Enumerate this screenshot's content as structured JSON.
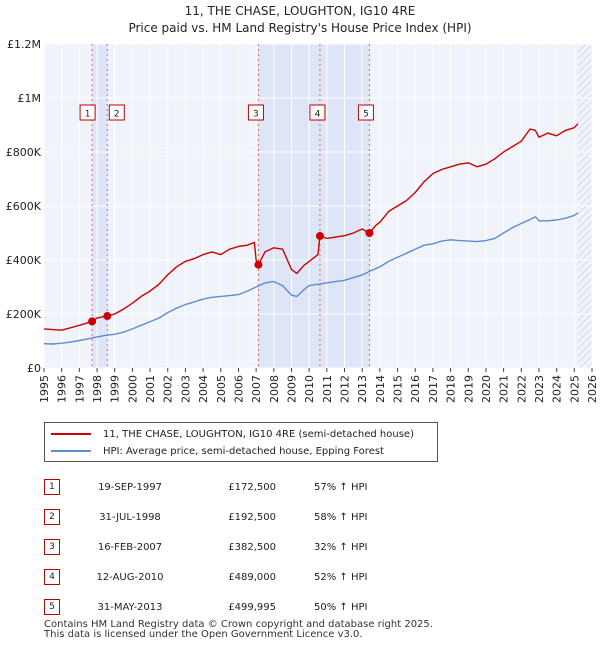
{
  "chart_data": {
    "type": "line",
    "title": "11, THE CHASE, LOUGHTON, IG10 4RE",
    "subtitle": "Price paid vs. HM Land Registry's House Price Index (HPI)",
    "xlim": [
      1995,
      2026
    ],
    "ylim": [
      0,
      1200000
    ],
    "x_ticks": [
      1995,
      1996,
      1997,
      1998,
      1999,
      2000,
      2001,
      2002,
      2003,
      2004,
      2005,
      2006,
      2007,
      2008,
      2009,
      2010,
      2011,
      2012,
      2013,
      2014,
      2015,
      2016,
      2017,
      2018,
      2019,
      2020,
      2021,
      2022,
      2023,
      2024,
      2025,
      2026
    ],
    "x_tick_labels": [
      "1995",
      "1996",
      "1997",
      "1998",
      "1999",
      "2000",
      "2001",
      "2002",
      "2003",
      "2004",
      "2005",
      "2006",
      "2007",
      "2008",
      "2009",
      "2010",
      "2011",
      "2012",
      "2013",
      "2014",
      "2015",
      "2016",
      "2017",
      "2018",
      "2019",
      "2020",
      "2021",
      "2022",
      "2023",
      "2024",
      "2025",
      "2026"
    ],
    "y_ticks": [
      0,
      200000,
      400000,
      600000,
      800000,
      1000000,
      1200000
    ],
    "y_tick_labels": [
      "£0",
      "£200K",
      "£400K",
      "£600K",
      "£800K",
      "£1M",
      "£1.2M"
    ],
    "shaded_spans": [
      [
        1997.72,
        1998.58
      ],
      [
        2007.13,
        2013.41
      ]
    ],
    "data_end_x": 2025.2,
    "series": [
      {
        "name": "11, THE CHASE, LOUGHTON, IG10 4RE (semi-detached house)",
        "color": "#cc0000",
        "x": [
          1995.0,
          1996.0,
          1997.0,
          1997.72,
          1998.0,
          1998.58,
          1999.0,
          1999.5,
          2000.0,
          2000.5,
          2001.0,
          2001.5,
          2002.0,
          2002.5,
          2003.0,
          2003.5,
          2004.0,
          2004.5,
          2005.0,
          2005.5,
          2006.0,
          2006.5,
          2006.9,
          2007.0,
          2007.13,
          2007.5,
          2008.0,
          2008.5,
          2009.0,
          2009.3,
          2009.7,
          2010.0,
          2010.5,
          2010.61,
          2011.0,
          2011.5,
          2012.0,
          2012.5,
          2013.0,
          2013.41,
          2013.8,
          2014.0,
          2014.5,
          2015.0,
          2015.5,
          2016.0,
          2016.5,
          2017.0,
          2017.5,
          2018.0,
          2018.5,
          2019.0,
          2019.5,
          2020.0,
          2020.5,
          2021.0,
          2021.5,
          2022.0,
          2022.5,
          2022.8,
          2023.0,
          2023.5,
          2024.0,
          2024.5,
          2025.0,
          2025.2
        ],
        "values": [
          145000,
          140000,
          158000,
          172500,
          185000,
          192500,
          200000,
          218000,
          240000,
          265000,
          285000,
          310000,
          345000,
          375000,
          395000,
          405000,
          420000,
          430000,
          420000,
          440000,
          450000,
          455000,
          465000,
          400000,
          382500,
          430000,
          445000,
          440000,
          365000,
          350000,
          380000,
          395000,
          420000,
          489000,
          480000,
          485000,
          490000,
          500000,
          515000,
          499995,
          530000,
          540000,
          580000,
          600000,
          620000,
          650000,
          690000,
          720000,
          735000,
          745000,
          755000,
          760000,
          745000,
          755000,
          775000,
          800000,
          820000,
          840000,
          885000,
          880000,
          855000,
          870000,
          860000,
          880000,
          890000,
          905000
        ]
      },
      {
        "name": "HPI: Average price, semi-detached house, Epping Forest",
        "color": "#5b8dd6",
        "x": [
          1995.0,
          1995.5,
          1996.0,
          1996.5,
          1997.0,
          1997.5,
          1998.0,
          1998.5,
          1999.0,
          1999.5,
          2000.0,
          2000.5,
          2001.0,
          2001.5,
          2002.0,
          2002.5,
          2003.0,
          2003.5,
          2004.0,
          2004.5,
          2005.0,
          2005.5,
          2006.0,
          2006.5,
          2007.0,
          2007.5,
          2008.0,
          2008.5,
          2009.0,
          2009.3,
          2009.7,
          2010.0,
          2010.5,
          2011.0,
          2011.5,
          2012.0,
          2012.5,
          2013.0,
          2013.5,
          2014.0,
          2014.5,
          2015.0,
          2015.5,
          2016.0,
          2016.5,
          2017.0,
          2017.5,
          2018.0,
          2018.5,
          2019.0,
          2019.5,
          2020.0,
          2020.5,
          2021.0,
          2021.5,
          2022.0,
          2022.5,
          2022.8,
          2023.0,
          2023.5,
          2024.0,
          2024.5,
          2025.0,
          2025.2
        ],
        "values": [
          90000,
          89000,
          92000,
          96000,
          102000,
          108000,
          115000,
          121000,
          125000,
          133000,
          145000,
          158000,
          172000,
          185000,
          205000,
          222000,
          235000,
          245000,
          255000,
          262000,
          265000,
          268000,
          272000,
          285000,
          300000,
          315000,
          320000,
          305000,
          270000,
          265000,
          290000,
          305000,
          310000,
          315000,
          320000,
          325000,
          335000,
          345000,
          360000,
          375000,
          395000,
          410000,
          425000,
          440000,
          455000,
          460000,
          470000,
          475000,
          472000,
          470000,
          468000,
          472000,
          480000,
          500000,
          520000,
          535000,
          550000,
          560000,
          545000,
          545000,
          548000,
          555000,
          565000,
          575000
        ]
      }
    ],
    "transactions": [
      {
        "num": "1",
        "x": 1997.72,
        "price": 172500
      },
      {
        "num": "2",
        "x": 1998.58,
        "price": 192500
      },
      {
        "num": "3",
        "x": 2007.13,
        "price": 382500
      },
      {
        "num": "4",
        "x": 2010.61,
        "price": 489000
      },
      {
        "num": "5",
        "x": 2013.41,
        "price": 499995
      }
    ]
  },
  "header": {
    "title": "11, THE CHASE, LOUGHTON, IG10 4RE",
    "subtitle": "Price paid vs. HM Land Registry's House Price Index (HPI)"
  },
  "legend": {
    "property": "11, THE CHASE, LOUGHTON, IG10 4RE (semi-detached house)",
    "hpi": "HPI: Average price, semi-detached house, Epping Forest",
    "property_color": "#cc0000",
    "hpi_color": "#5b8dd6"
  },
  "table": [
    {
      "num": "1",
      "date": "19-SEP-1997",
      "price": "£172,500",
      "hpi": "57% ↑ HPI"
    },
    {
      "num": "2",
      "date": "31-JUL-1998",
      "price": "£192,500",
      "hpi": "58% ↑ HPI"
    },
    {
      "num": "3",
      "date": "16-FEB-2007",
      "price": "£382,500",
      "hpi": "32% ↑ HPI"
    },
    {
      "num": "4",
      "date": "12-AUG-2010",
      "price": "£489,000",
      "hpi": "52% ↑ HPI"
    },
    {
      "num": "5",
      "date": "31-MAY-2013",
      "price": "£499,995",
      "hpi": "50% ↑ HPI"
    }
  ],
  "footer": {
    "line1": "Contains HM Land Registry data © Crown copyright and database right 2025.",
    "line2": "This data is licensed under the Open Government Licence v3.0."
  }
}
